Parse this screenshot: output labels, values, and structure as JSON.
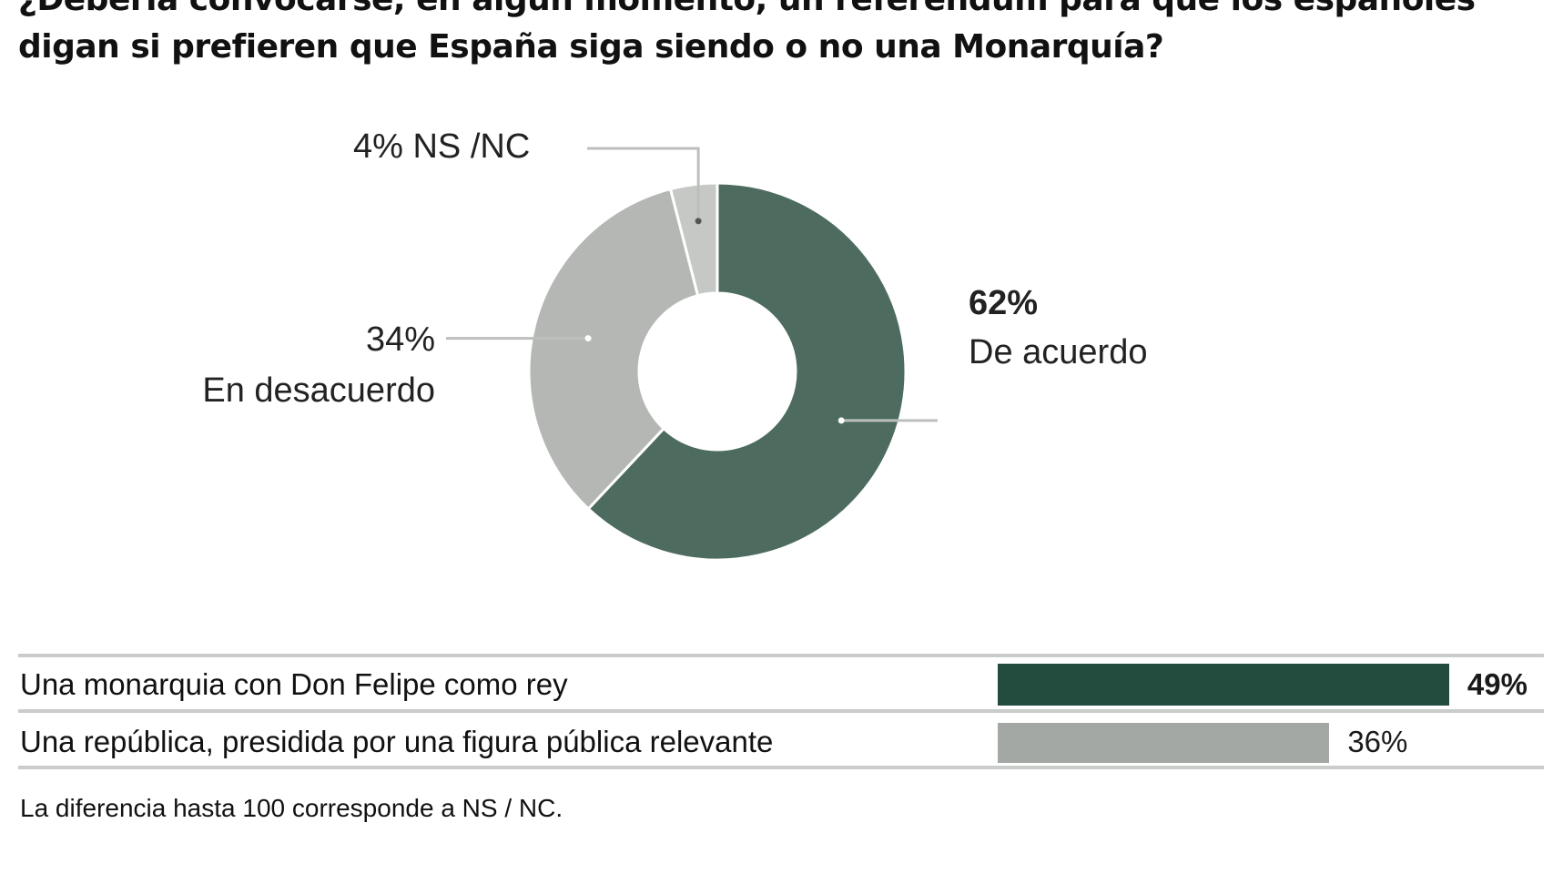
{
  "chart_data": [
    {
      "type": "pie",
      "title": "¿Debería convocarse, en algún momento, un referéndum para que los españoles digan si prefieren que España siga siendo o no una Monarquía?",
      "slices": [
        {
          "label": "De acuerdo",
          "value": 62,
          "value_label": "62%",
          "color": "#4d6b5f"
        },
        {
          "label": "En desacuerdo",
          "value": 34,
          "value_label": "34%",
          "color": "#b4b7b3"
        },
        {
          "label": "NS /NC",
          "value": 4,
          "value_label": "4%",
          "color": "#c6c8c5"
        }
      ],
      "donut": true
    },
    {
      "type": "bar",
      "orientation": "horizontal",
      "categories": [
        "Una monarquia con Don Felipe como rey",
        "Una república, presidida por una figura pública relevante"
      ],
      "values": [
        49,
        36
      ],
      "value_labels": [
        "49%",
        "36%"
      ],
      "colors": [
        "#234c3f",
        "#a4a8a4"
      ],
      "note": "La diferencia hasta 100 corresponde a NS / NC."
    }
  ]
}
